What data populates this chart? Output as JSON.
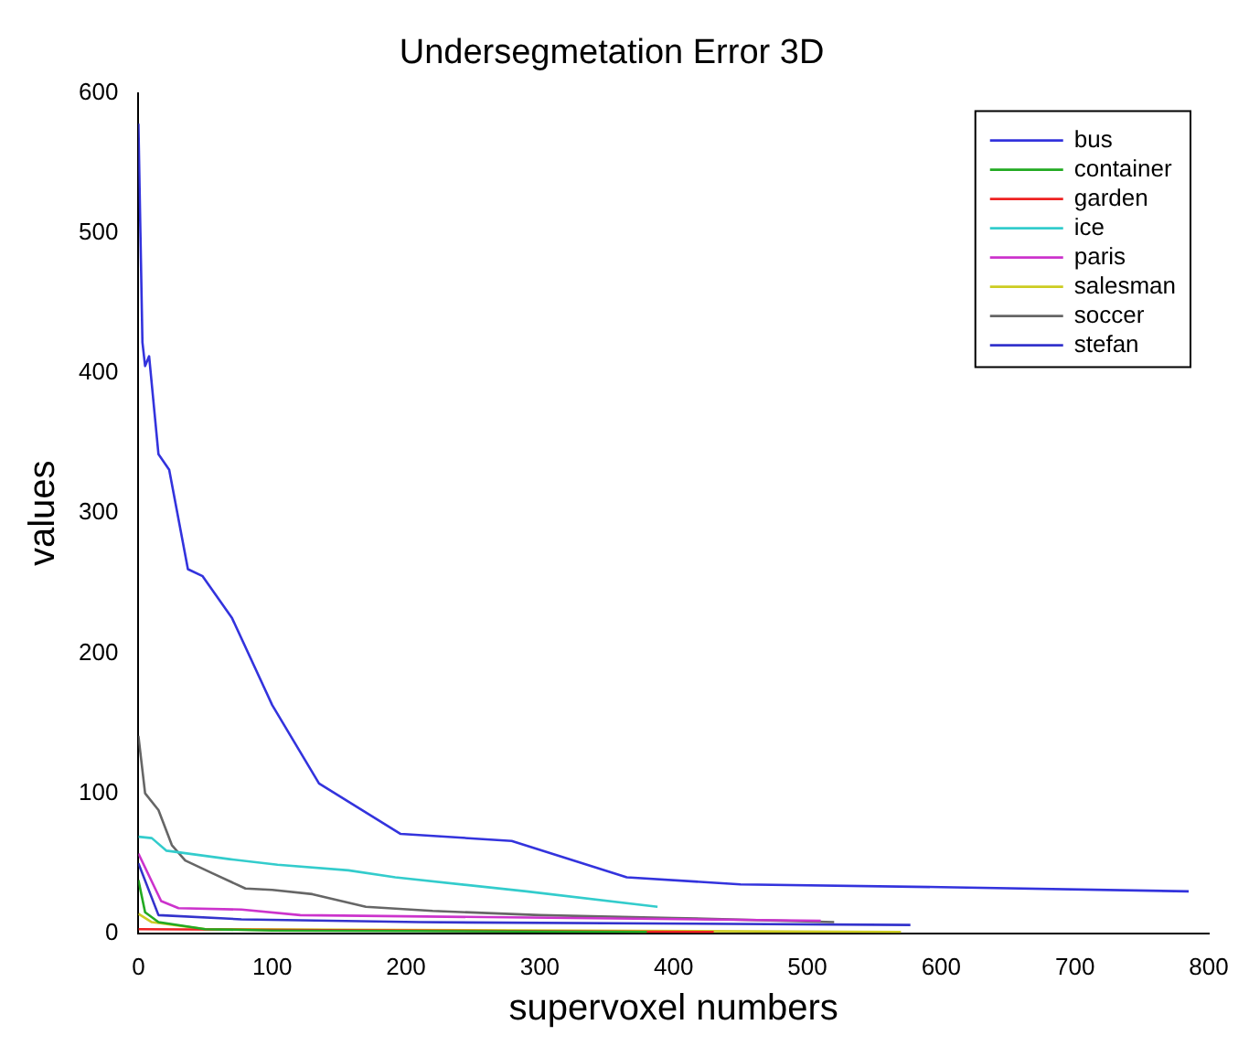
{
  "chart_data": {
    "type": "line",
    "title": "Undersegmetation Error 3D",
    "xlabel": "supervoxel numbers",
    "ylabel": "values",
    "xlim": [
      0,
      800
    ],
    "xticks": [
      0,
      100,
      200,
      300,
      400,
      500,
      600,
      700,
      800
    ],
    "ylim": [
      0,
      600
    ],
    "yticks": [
      0,
      100,
      200,
      300,
      400,
      500,
      600
    ],
    "legend": "top right",
    "grid": false,
    "marker": "none",
    "line_style": "solid",
    "series": [
      {
        "name": "bus",
        "color": "#3333dd",
        "x": [
          0,
          3,
          5,
          8,
          15,
          23,
          37,
          48,
          70,
          100,
          135,
          196,
          279,
          365,
          450,
          600,
          785
        ],
        "values": [
          578,
          422,
          405,
          412,
          342,
          331,
          260,
          255,
          225,
          163,
          107,
          71,
          66,
          40,
          35,
          33,
          30
        ]
      },
      {
        "name": "container",
        "color": "#22aa22",
        "x": [
          0,
          5,
          15,
          50,
          100,
          380
        ],
        "values": [
          38,
          15,
          8,
          3,
          2,
          1
        ]
      },
      {
        "name": "garden",
        "color": "#ee2222",
        "x": [
          0,
          430
        ],
        "values": [
          3,
          1
        ]
      },
      {
        "name": "ice",
        "color": "#33cccc",
        "x": [
          0,
          10,
          21,
          68,
          104,
          157,
          192,
          290,
          388
        ],
        "values": [
          69,
          68,
          59,
          53,
          49,
          45,
          40,
          30,
          19
        ]
      },
      {
        "name": "paris",
        "color": "#cc33cc",
        "x": [
          0,
          17,
          30,
          77,
          121,
          510
        ],
        "values": [
          57,
          23,
          18,
          17,
          13,
          9
        ]
      },
      {
        "name": "salesman",
        "color": "#cccc22",
        "x": [
          0,
          10,
          50,
          570
        ],
        "values": [
          14,
          8,
          3,
          1
        ]
      },
      {
        "name": "soccer",
        "color": "#666666",
        "x": [
          0,
          5,
          15,
          25,
          35,
          55,
          80,
          100,
          130,
          170,
          220,
          300,
          400,
          520
        ],
        "values": [
          141,
          100,
          88,
          63,
          52,
          43,
          32,
          31,
          28,
          19,
          16,
          13,
          11,
          8
        ]
      },
      {
        "name": "stefan",
        "color": "#3333cc",
        "x": [
          0,
          15,
          77,
          210,
          577
        ],
        "values": [
          50,
          13,
          10,
          8,
          6
        ]
      }
    ]
  }
}
